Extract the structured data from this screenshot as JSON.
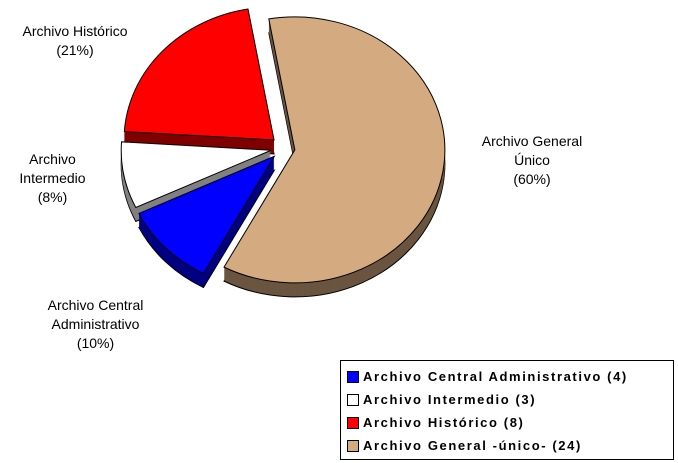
{
  "chart_data": {
    "type": "pie",
    "categories": [
      "Archivo Central Administrativo",
      "Archivo Intermedio",
      "Archivo Histórico",
      "Archivo General Único"
    ],
    "values": [
      10,
      8,
      21,
      60
    ],
    "value_labels": [
      "(10%)",
      "(8%)",
      "(21%)",
      "(60%)"
    ],
    "colors": [
      "#0000ff",
      "#ffffff",
      "#ff0000",
      "#d4aa80"
    ],
    "legend": [
      "Archivo Central Administrativo (4)",
      "Archivo Intermedio (3)",
      "Archivo Histórico (8)",
      "Archivo General -único- (24)"
    ],
    "legend_position": "bottom-right"
  }
}
